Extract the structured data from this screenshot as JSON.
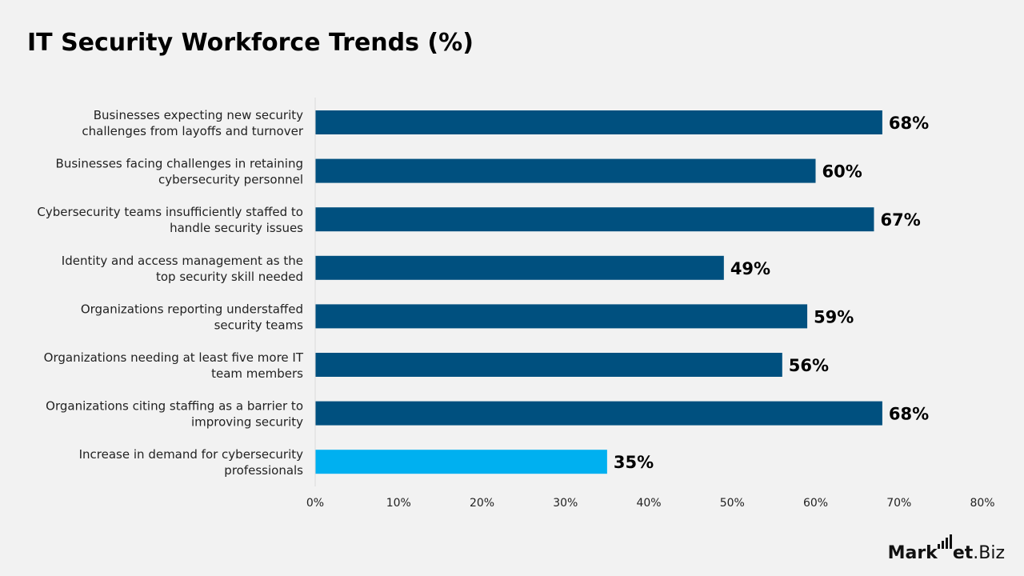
{
  "chart_data": {
    "type": "bar",
    "orientation": "horizontal",
    "title": "IT Security Workforce Trends (%)",
    "xlabel": "",
    "ylabel": "",
    "xlim": [
      0,
      80
    ],
    "x_ticks": [
      "0%",
      "10%",
      "20%",
      "30%",
      "40%",
      "50%",
      "60%",
      "70%",
      "80%"
    ],
    "grid": false,
    "legend": "none",
    "categories": [
      [
        "Businesses expecting new security",
        "challenges from layoffs and turnover"
      ],
      [
        "Businesses facing challenges in retaining",
        "cybersecurity personnel"
      ],
      [
        "Cybersecurity teams insufficiently staffed to",
        "handle security issues"
      ],
      [
        "Identity and access management as the",
        "top security skill needed"
      ],
      [
        "Organizations reporting understaffed",
        "security teams"
      ],
      [
        "Organizations needing at least five more IT",
        "team members"
      ],
      [
        "Organizations citing staffing as a barrier to",
        "improving security"
      ],
      [
        "Increase in demand for cybersecurity",
        "professionals"
      ]
    ],
    "values": [
      68,
      60,
      67,
      49,
      59,
      56,
      68,
      35
    ],
    "value_labels": [
      "68%",
      "60%",
      "67%",
      "49%",
      "59%",
      "56%",
      "68%",
      "35%"
    ],
    "colors": [
      "#00507f",
      "#00507f",
      "#00507f",
      "#00507f",
      "#00507f",
      "#00507f",
      "#00507f",
      "#00b0f0"
    ]
  },
  "brand": {
    "part1": "Mark",
    "part2": "et",
    "part3": ".Biz",
    "icon": "bar-chart-logo-icon"
  },
  "colors": {
    "background": "#f2f2f2",
    "bar_primary": "#00507f",
    "bar_highlight": "#00b0f0",
    "axis_line": "#d9d9d9"
  }
}
